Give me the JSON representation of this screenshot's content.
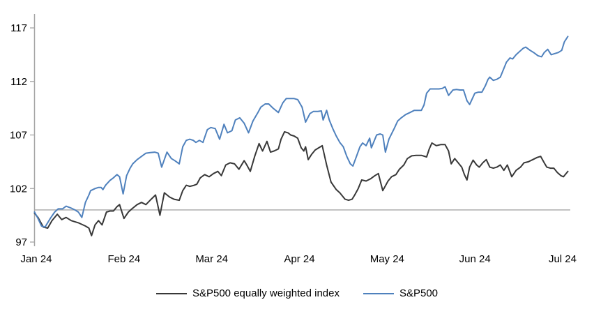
{
  "chart_data": {
    "type": "line",
    "x_axis": {
      "labels": [
        "Jan 24",
        "Feb 24",
        "Mar 24",
        "Apr 24",
        "May 24",
        "Jun 24",
        "Jul 24"
      ]
    },
    "y_axis": {
      "ticks": [
        97,
        102,
        107,
        112,
        117
      ],
      "min": 97,
      "max": 117
    },
    "reference_line": {
      "value": 100,
      "color": "#a6a6a6"
    },
    "axis_color": "#a6a6a6",
    "legend_position": "bottom-center",
    "grid": "off",
    "series": [
      {
        "name": "S&P500 equally weighted index",
        "color": "#383838",
        "points": [
          [
            -0.02,
            99.7
          ],
          [
            0.02,
            99.3
          ],
          [
            0.08,
            98.4
          ],
          [
            0.13,
            98.3
          ],
          [
            0.18,
            99.0
          ],
          [
            0.24,
            99.6
          ],
          [
            0.29,
            99.1
          ],
          [
            0.34,
            99.3
          ],
          [
            0.4,
            99.0
          ],
          [
            0.48,
            98.8
          ],
          [
            0.56,
            98.5
          ],
          [
            0.6,
            98.3
          ],
          [
            0.63,
            97.6
          ],
          [
            0.67,
            98.6
          ],
          [
            0.71,
            99.0
          ],
          [
            0.75,
            98.6
          ],
          [
            0.8,
            99.8
          ],
          [
            0.84,
            99.9
          ],
          [
            0.88,
            99.9
          ],
          [
            0.92,
            100.3
          ],
          [
            0.95,
            100.5
          ],
          [
            1.0,
            99.2
          ],
          [
            1.05,
            99.8
          ],
          [
            1.09,
            100.1
          ],
          [
            1.15,
            100.5
          ],
          [
            1.2,
            100.7
          ],
          [
            1.25,
            100.5
          ],
          [
            1.31,
            101.0
          ],
          [
            1.36,
            101.4
          ],
          [
            1.41,
            99.5
          ],
          [
            1.46,
            101.6
          ],
          [
            1.52,
            101.2
          ],
          [
            1.57,
            101.0
          ],
          [
            1.63,
            100.9
          ],
          [
            1.67,
            101.8
          ],
          [
            1.71,
            102.3
          ],
          [
            1.75,
            102.2
          ],
          [
            1.8,
            102.3
          ],
          [
            1.83,
            102.4
          ],
          [
            1.87,
            103.0
          ],
          [
            1.92,
            103.3
          ],
          [
            1.97,
            103.1
          ],
          [
            2.02,
            103.4
          ],
          [
            2.07,
            103.6
          ],
          [
            2.11,
            103.2
          ],
          [
            2.16,
            104.2
          ],
          [
            2.21,
            104.4
          ],
          [
            2.26,
            104.3
          ],
          [
            2.31,
            103.8
          ],
          [
            2.37,
            104.6
          ],
          [
            2.4,
            104.2
          ],
          [
            2.44,
            103.6
          ],
          [
            2.49,
            105.0
          ],
          [
            2.54,
            106.2
          ],
          [
            2.58,
            105.5
          ],
          [
            2.63,
            106.4
          ],
          [
            2.67,
            105.4
          ],
          [
            2.71,
            105.5
          ],
          [
            2.76,
            105.7
          ],
          [
            2.79,
            106.6
          ],
          [
            2.83,
            107.3
          ],
          [
            2.87,
            107.2
          ],
          [
            2.9,
            107.0
          ],
          [
            2.94,
            106.9
          ],
          [
            2.98,
            106.7
          ],
          [
            3.02,
            105.8
          ],
          [
            3.05,
            105.5
          ],
          [
            3.07,
            105.9
          ],
          [
            3.1,
            104.7
          ],
          [
            3.14,
            105.2
          ],
          [
            3.18,
            105.6
          ],
          [
            3.22,
            105.8
          ],
          [
            3.26,
            106.0
          ],
          [
            3.31,
            104.2
          ],
          [
            3.36,
            102.6
          ],
          [
            3.42,
            101.9
          ],
          [
            3.46,
            101.6
          ],
          [
            3.52,
            101.0
          ],
          [
            3.56,
            100.9
          ],
          [
            3.6,
            101.0
          ],
          [
            3.63,
            101.4
          ],
          [
            3.67,
            102.0
          ],
          [
            3.71,
            102.8
          ],
          [
            3.76,
            102.7
          ],
          [
            3.81,
            102.9
          ],
          [
            3.86,
            103.2
          ],
          [
            3.9,
            103.4
          ],
          [
            3.95,
            101.8
          ],
          [
            4.01,
            102.7
          ],
          [
            4.05,
            103.1
          ],
          [
            4.1,
            103.3
          ],
          [
            4.14,
            103.8
          ],
          [
            4.19,
            104.2
          ],
          [
            4.23,
            104.8
          ],
          [
            4.28,
            105.05
          ],
          [
            4.33,
            105.1
          ],
          [
            4.39,
            105.1
          ],
          [
            4.45,
            104.95
          ],
          [
            4.48,
            105.7
          ],
          [
            4.51,
            106.25
          ],
          [
            4.56,
            106.0
          ],
          [
            4.61,
            106.1
          ],
          [
            4.66,
            106.1
          ],
          [
            4.7,
            105.5
          ],
          [
            4.73,
            104.3
          ],
          [
            4.77,
            104.8
          ],
          [
            4.81,
            104.4
          ],
          [
            4.85,
            104.0
          ],
          [
            4.88,
            103.3
          ],
          [
            4.91,
            102.8
          ],
          [
            4.94,
            104.0
          ],
          [
            4.98,
            104.65
          ],
          [
            5.02,
            104.2
          ],
          [
            5.05,
            104.0
          ],
          [
            5.09,
            104.4
          ],
          [
            5.13,
            104.7
          ],
          [
            5.17,
            104.0
          ],
          [
            5.21,
            103.9
          ],
          [
            5.25,
            104.0
          ],
          [
            5.29,
            104.2
          ],
          [
            5.33,
            103.7
          ],
          [
            5.37,
            104.2
          ],
          [
            5.42,
            103.1
          ],
          [
            5.47,
            103.7
          ],
          [
            5.52,
            104.0
          ],
          [
            5.56,
            104.4
          ],
          [
            5.61,
            104.5
          ],
          [
            5.66,
            104.7
          ],
          [
            5.71,
            104.9
          ],
          [
            5.75,
            105.0
          ],
          [
            5.79,
            104.4
          ],
          [
            5.82,
            104.0
          ],
          [
            5.86,
            103.9
          ],
          [
            5.9,
            103.9
          ],
          [
            5.94,
            103.5
          ],
          [
            5.98,
            103.2
          ],
          [
            6.01,
            103.1
          ],
          [
            6.06,
            103.6
          ]
        ]
      },
      {
        "name": "S&P500",
        "color": "#4f81bd",
        "points": [
          [
            -0.02,
            99.8
          ],
          [
            0.02,
            99.2
          ],
          [
            0.06,
            98.5
          ],
          [
            0.1,
            98.4
          ],
          [
            0.16,
            99.2
          ],
          [
            0.21,
            99.8
          ],
          [
            0.25,
            100.1
          ],
          [
            0.3,
            100.1
          ],
          [
            0.34,
            100.35
          ],
          [
            0.39,
            100.2
          ],
          [
            0.44,
            100.0
          ],
          [
            0.48,
            99.8
          ],
          [
            0.52,
            99.3
          ],
          [
            0.56,
            100.7
          ],
          [
            0.6,
            101.4
          ],
          [
            0.62,
            101.8
          ],
          [
            0.67,
            102.0
          ],
          [
            0.71,
            102.1
          ],
          [
            0.74,
            102.1
          ],
          [
            0.76,
            101.9
          ],
          [
            0.79,
            102.3
          ],
          [
            0.84,
            102.75
          ],
          [
            0.88,
            103.0
          ],
          [
            0.92,
            103.3
          ],
          [
            0.95,
            103.1
          ],
          [
            0.99,
            101.5
          ],
          [
            1.03,
            103.2
          ],
          [
            1.07,
            103.9
          ],
          [
            1.1,
            104.3
          ],
          [
            1.15,
            104.7
          ],
          [
            1.2,
            105.0
          ],
          [
            1.25,
            105.3
          ],
          [
            1.3,
            105.35
          ],
          [
            1.35,
            105.4
          ],
          [
            1.39,
            105.3
          ],
          [
            1.43,
            104.0
          ],
          [
            1.49,
            105.4
          ],
          [
            1.54,
            104.8
          ],
          [
            1.58,
            104.6
          ],
          [
            1.63,
            104.3
          ],
          [
            1.67,
            105.9
          ],
          [
            1.71,
            106.5
          ],
          [
            1.75,
            106.6
          ],
          [
            1.79,
            106.5
          ],
          [
            1.82,
            106.3
          ],
          [
            1.86,
            106.5
          ],
          [
            1.9,
            106.3
          ],
          [
            1.95,
            107.5
          ],
          [
            1.99,
            107.7
          ],
          [
            2.04,
            107.6
          ],
          [
            2.09,
            106.6
          ],
          [
            2.14,
            108.0
          ],
          [
            2.18,
            107.2
          ],
          [
            2.23,
            107.4
          ],
          [
            2.27,
            108.4
          ],
          [
            2.32,
            108.6
          ],
          [
            2.37,
            108.1
          ],
          [
            2.42,
            107.2
          ],
          [
            2.47,
            108.3
          ],
          [
            2.52,
            109.0
          ],
          [
            2.56,
            109.6
          ],
          [
            2.61,
            109.9
          ],
          [
            2.65,
            109.9
          ],
          [
            2.7,
            109.5
          ],
          [
            2.76,
            109.1
          ],
          [
            2.81,
            110.0
          ],
          [
            2.85,
            110.4
          ],
          [
            2.89,
            110.4
          ],
          [
            2.94,
            110.4
          ],
          [
            2.98,
            110.3
          ],
          [
            3.03,
            109.6
          ],
          [
            3.07,
            108.2
          ],
          [
            3.12,
            109.0
          ],
          [
            3.16,
            109.2
          ],
          [
            3.21,
            109.2
          ],
          [
            3.25,
            109.25
          ],
          [
            3.27,
            108.4
          ],
          [
            3.31,
            109.3
          ],
          [
            3.34,
            108.4
          ],
          [
            3.38,
            107.6
          ],
          [
            3.42,
            106.9
          ],
          [
            3.46,
            106.3
          ],
          [
            3.5,
            105.9
          ],
          [
            3.54,
            105.0
          ],
          [
            3.58,
            104.3
          ],
          [
            3.61,
            104.1
          ],
          [
            3.65,
            105.0
          ],
          [
            3.69,
            105.9
          ],
          [
            3.72,
            106.25
          ],
          [
            3.76,
            106.0
          ],
          [
            3.8,
            106.7
          ],
          [
            3.82,
            105.8
          ],
          [
            3.88,
            107.0
          ],
          [
            3.92,
            107.1
          ],
          [
            3.95,
            107.0
          ],
          [
            3.98,
            105.4
          ],
          [
            4.02,
            106.6
          ],
          [
            4.08,
            107.6
          ],
          [
            4.12,
            108.3
          ],
          [
            4.16,
            108.6
          ],
          [
            4.21,
            108.9
          ],
          [
            4.26,
            109.1
          ],
          [
            4.31,
            109.3
          ],
          [
            4.36,
            109.3
          ],
          [
            4.39,
            109.3
          ],
          [
            4.42,
            109.8
          ],
          [
            4.45,
            110.9
          ],
          [
            4.49,
            111.3
          ],
          [
            4.54,
            111.3
          ],
          [
            4.59,
            111.3
          ],
          [
            4.63,
            111.35
          ],
          [
            4.66,
            111.5
          ],
          [
            4.7,
            110.7
          ],
          [
            4.75,
            111.2
          ],
          [
            4.79,
            111.25
          ],
          [
            4.83,
            111.2
          ],
          [
            4.87,
            111.2
          ],
          [
            4.91,
            110.2
          ],
          [
            4.94,
            109.85
          ],
          [
            5.0,
            110.9
          ],
          [
            5.04,
            111.0
          ],
          [
            5.08,
            111.0
          ],
          [
            5.12,
            111.6
          ],
          [
            5.15,
            112.2
          ],
          [
            5.17,
            112.4
          ],
          [
            5.21,
            112.1
          ],
          [
            5.25,
            112.2
          ],
          [
            5.29,
            112.4
          ],
          [
            5.32,
            113.0
          ],
          [
            5.36,
            113.8
          ],
          [
            5.4,
            114.2
          ],
          [
            5.43,
            114.1
          ],
          [
            5.47,
            114.5
          ],
          [
            5.51,
            114.8
          ],
          [
            5.55,
            115.1
          ],
          [
            5.58,
            115.2
          ],
          [
            5.63,
            114.9
          ],
          [
            5.67,
            114.7
          ],
          [
            5.72,
            114.4
          ],
          [
            5.76,
            114.3
          ],
          [
            5.79,
            114.7
          ],
          [
            5.83,
            115.0
          ],
          [
            5.87,
            114.5
          ],
          [
            5.91,
            114.6
          ],
          [
            5.95,
            114.7
          ],
          [
            5.99,
            114.9
          ],
          [
            6.02,
            115.7
          ],
          [
            6.06,
            116.2
          ]
        ]
      }
    ]
  }
}
